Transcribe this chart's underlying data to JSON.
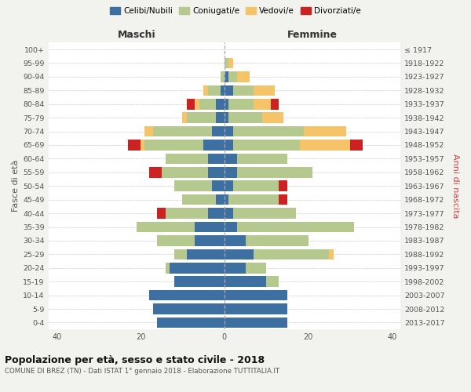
{
  "age_groups": [
    "0-4",
    "5-9",
    "10-14",
    "15-19",
    "20-24",
    "25-29",
    "30-34",
    "35-39",
    "40-44",
    "45-49",
    "50-54",
    "55-59",
    "60-64",
    "65-69",
    "70-74",
    "75-79",
    "80-84",
    "85-89",
    "90-94",
    "95-99",
    "100+"
  ],
  "birth_years": [
    "2013-2017",
    "2008-2012",
    "2003-2007",
    "1998-2002",
    "1993-1997",
    "1988-1992",
    "1983-1987",
    "1978-1982",
    "1973-1977",
    "1968-1972",
    "1963-1967",
    "1958-1962",
    "1953-1957",
    "1948-1952",
    "1943-1947",
    "1938-1942",
    "1933-1937",
    "1928-1932",
    "1923-1927",
    "1918-1922",
    "≤ 1917"
  ],
  "colors": {
    "celibi": "#3d6fa0",
    "coniugati": "#b5c98e",
    "vedovi": "#f5c469",
    "divorziati": "#cc2222"
  },
  "maschi": {
    "celibi": [
      16,
      17,
      18,
      12,
      13,
      9,
      7,
      7,
      4,
      2,
      3,
      4,
      4,
      5,
      3,
      2,
      2,
      1,
      0,
      0,
      0
    ],
    "coniugati": [
      0,
      0,
      0,
      0,
      1,
      3,
      9,
      14,
      10,
      8,
      9,
      11,
      10,
      14,
      14,
      7,
      4,
      3,
      1,
      0,
      0
    ],
    "vedovi": [
      0,
      0,
      0,
      0,
      0,
      0,
      0,
      0,
      0,
      0,
      0,
      0,
      0,
      1,
      2,
      1,
      1,
      1,
      0,
      0,
      0
    ],
    "divorziati": [
      0,
      0,
      0,
      0,
      0,
      0,
      0,
      0,
      2,
      0,
      0,
      3,
      0,
      3,
      0,
      0,
      2,
      0,
      0,
      0,
      0
    ]
  },
  "femmine": {
    "celibi": [
      15,
      15,
      15,
      10,
      5,
      7,
      5,
      3,
      2,
      1,
      2,
      3,
      3,
      2,
      2,
      1,
      1,
      2,
      1,
      0,
      0
    ],
    "coniugati": [
      0,
      0,
      0,
      3,
      5,
      18,
      15,
      28,
      15,
      12,
      11,
      18,
      12,
      16,
      17,
      8,
      6,
      5,
      2,
      1,
      0
    ],
    "vedovi": [
      0,
      0,
      0,
      0,
      0,
      1,
      0,
      0,
      0,
      0,
      0,
      0,
      0,
      12,
      10,
      5,
      4,
      5,
      3,
      1,
      0
    ],
    "divorziati": [
      0,
      0,
      0,
      0,
      0,
      0,
      0,
      0,
      0,
      2,
      2,
      0,
      0,
      3,
      0,
      0,
      2,
      0,
      0,
      0,
      0
    ]
  },
  "xlim": 42,
  "title": "Popolazione per età, sesso e stato civile - 2018",
  "subtitle": "COMUNE DI BREZ (TN) - Dati ISTAT 1° gennaio 2018 - Elaborazione TUTTITALIA.IT",
  "ylabel_left": "Fasce di età",
  "ylabel_right": "Anni di nascita",
  "xlabel_left": "Maschi",
  "xlabel_right": "Femmine",
  "legend_labels": [
    "Celibi/Nubili",
    "Coniugati/e",
    "Vedovi/e",
    "Divorziati/e"
  ],
  "bg_color": "#f2f2ee",
  "plot_bg_color": "#ffffff"
}
